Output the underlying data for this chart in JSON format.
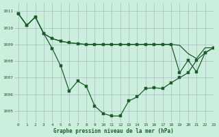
{
  "background_color": "#cceedd",
  "grid_color": "#aabbcc",
  "line_color": "#1a5c2a",
  "marker_color": "#1a5c2a",
  "xlabel": "Graphe pression niveau de la mer (hPa)",
  "ylim": [
    1004.3,
    1011.5
  ],
  "xlim": [
    -0.5,
    23
  ],
  "yticks": [
    1005,
    1006,
    1007,
    1008,
    1009,
    1010,
    1011
  ],
  "xticks": [
    0,
    1,
    2,
    3,
    4,
    5,
    6,
    7,
    8,
    9,
    10,
    11,
    12,
    13,
    14,
    15,
    16,
    17,
    18,
    19,
    20,
    21,
    22,
    23
  ],
  "series1": {
    "x": [
      0,
      1,
      2,
      3,
      4,
      5,
      6,
      7,
      8,
      9,
      10,
      11,
      12,
      13,
      14,
      15,
      16,
      17,
      18,
      19,
      20,
      21,
      22,
      23
    ],
    "y": [
      1010.85,
      1010.15,
      1010.65,
      1009.65,
      1009.35,
      1009.2,
      1009.1,
      1009.05,
      1009.0,
      1009.0,
      1009.0,
      1009.0,
      1009.0,
      1009.0,
      1009.0,
      1009.0,
      1009.0,
      1009.0,
      1009.0,
      1008.95,
      1008.45,
      1008.15,
      1008.8,
      1008.8
    ]
  },
  "series2": {
    "x": [
      0,
      1,
      2,
      3,
      4,
      5,
      6,
      7,
      8,
      9,
      10,
      11,
      12,
      13,
      14,
      15,
      16,
      17,
      18,
      19,
      20,
      21,
      22,
      23
    ],
    "y": [
      1010.85,
      1010.15,
      1010.65,
      1009.65,
      1009.35,
      1009.2,
      1009.1,
      1009.05,
      1009.0,
      1009.0,
      1009.0,
      1009.0,
      1009.0,
      1009.0,
      1009.0,
      1009.0,
      1009.0,
      1009.0,
      1009.0,
      1007.3,
      1008.05,
      1007.35,
      1008.5,
      1008.8
    ]
  },
  "series3": {
    "x": [
      0,
      1,
      2,
      3,
      4,
      5,
      6,
      7,
      8,
      9,
      10,
      11,
      12,
      13,
      14,
      15,
      16,
      17,
      18,
      19,
      20,
      21,
      22,
      23
    ],
    "y": [
      1010.85,
      1010.15,
      1010.65,
      1009.65,
      1008.75,
      1007.7,
      1006.2,
      1006.8,
      1006.5,
      1005.3,
      1004.85,
      1004.7,
      1004.7,
      1005.6,
      1005.85,
      1006.35,
      1006.4,
      1006.35,
      1006.7,
      1007.0,
      1007.3,
      1008.05,
      1008.5,
      1008.8
    ]
  }
}
